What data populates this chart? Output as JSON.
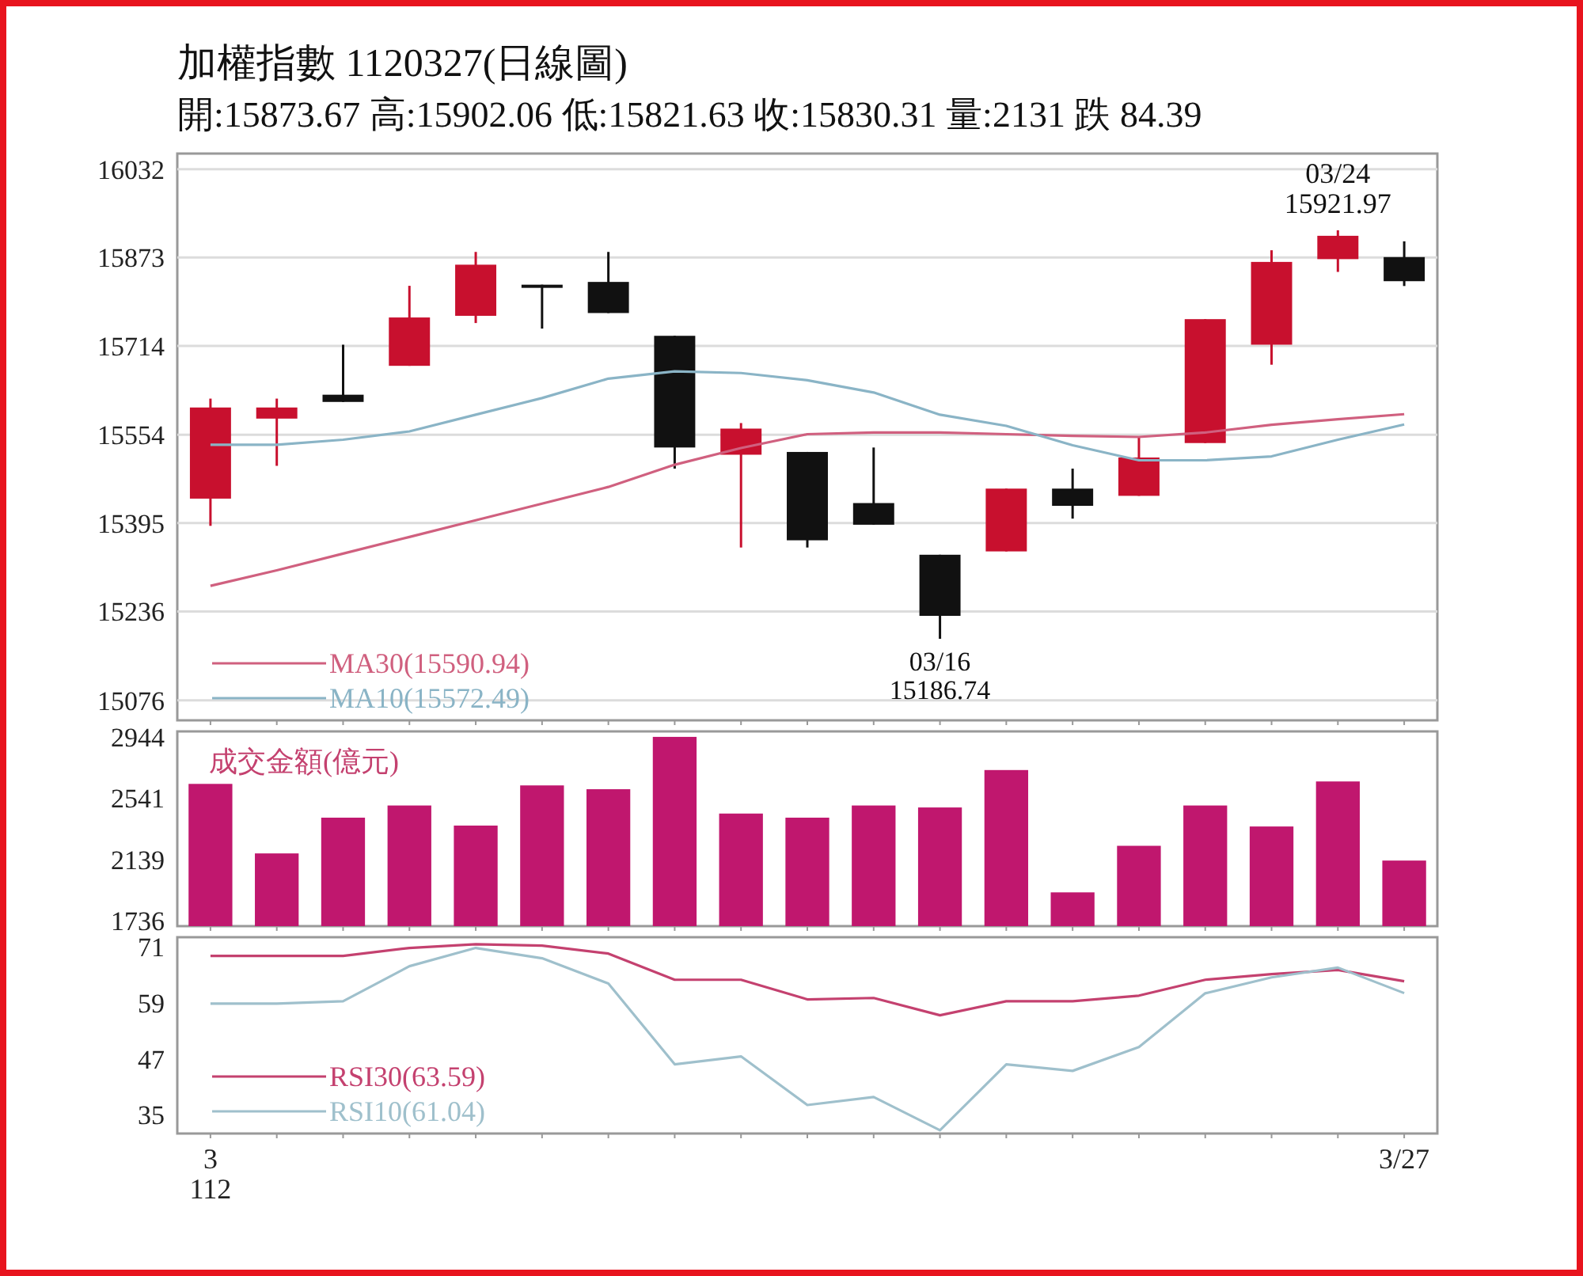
{
  "chart_data": [
    {
      "type": "candlestick",
      "title": "加權指數 1120327(日線圖)",
      "subtitle": "開:15873.67 高:15902.06 低:15821.63 收:15830.31 量:2131 跌 84.39",
      "categories": [
        null,
        null,
        null,
        null,
        null,
        null,
        null,
        null,
        null,
        null,
        null,
        null,
        null,
        null,
        null,
        null,
        null,
        null,
        null
      ],
      "ohlc": [
        [
          15439,
          15619,
          15390,
          15603
        ],
        [
          15583,
          15619,
          15498,
          15603
        ],
        [
          15626,
          15716,
          15613,
          15613
        ],
        [
          15678,
          15822,
          15678,
          15765
        ],
        [
          15768,
          15883,
          15755,
          15860
        ],
        [
          15824,
          15824,
          15745,
          15819
        ],
        [
          15829,
          15883,
          15773,
          15773
        ],
        [
          15732,
          15732,
          15493,
          15531
        ],
        [
          15518,
          15575,
          15351,
          15565
        ],
        [
          15523,
          15523,
          15351,
          15364
        ],
        [
          15431,
          15531,
          15392,
          15392
        ],
        [
          15338,
          15338,
          15186.74,
          15228
        ],
        [
          15344,
          15457,
          15344,
          15457
        ],
        [
          15457,
          15493,
          15403,
          15426
        ],
        [
          15444,
          15549,
          15444,
          15513
        ],
        [
          15539,
          15762,
          15539,
          15762
        ],
        [
          15716,
          15886,
          15680,
          15865
        ],
        [
          15870,
          15921.97,
          15847,
          15912
        ],
        [
          15873.67,
          15902.06,
          15821.63,
          15830.31
        ]
      ],
      "colors": [
        "#c8102e",
        "#c8102e",
        "#111111",
        "#c8102e",
        "#c8102e",
        "#111111",
        "#111111",
        "#111111",
        "#c8102e",
        "#111111",
        "#111111",
        "#111111",
        "#c8102e",
        "#111111",
        "#c8102e",
        "#c8102e",
        "#c8102e",
        "#c8102e",
        "#111111"
      ],
      "series": [
        {
          "type": "line",
          "name": "MA30(15590.94)",
          "color": "#d0607f",
          "values": [
            15282,
            15310,
            15340,
            15370,
            15400,
            15430,
            15460,
            15500,
            15530,
            15555,
            15558,
            15558,
            15555,
            15552,
            15550,
            15558,
            15572,
            15582,
            15590.94
          ]
        },
        {
          "type": "line",
          "name": "MA10(15572.49)",
          "color": "#8ab4c6",
          "values": [
            15536,
            15536,
            15545,
            15560,
            15590,
            15620,
            15655,
            15668,
            15665,
            15652,
            15630,
            15590,
            15570,
            15535,
            15508,
            15508,
            15515,
            15545,
            15572.49
          ]
        }
      ],
      "ylim": [
        15040,
        16060
      ],
      "yticks": [
        15076,
        15236,
        15395,
        15554,
        15714,
        15873,
        16032
      ],
      "grid": "y",
      "legend": "bottom left",
      "tick_labels": "y",
      "annotations": [
        {
          "text": "03/16\n15186.74",
          "y": 15186.74
        },
        {
          "text": "03/24\n15921.97",
          "y": 15921.97
        }
      ]
    },
    {
      "type": "bar",
      "title": "成交金額(億元)",
      "categories": [
        null,
        null,
        null,
        null,
        null,
        null,
        null,
        null,
        null,
        null,
        null,
        null,
        null,
        null,
        null,
        null,
        null,
        null,
        null
      ],
      "color": "#c0176e",
      "values": [
        2635,
        2178,
        2413,
        2493,
        2361,
        2625,
        2600,
        2944,
        2440,
        2413,
        2493,
        2480,
        2726,
        1922,
        2228,
        2493,
        2355,
        2651,
        2131
      ],
      "ylim": [
        1700,
        2980
      ],
      "yticks": [
        1736,
        2139,
        2541,
        2944
      ],
      "tick_labels": "y"
    },
    {
      "type": "line",
      "categories": [
        "3\n112",
        null,
        null,
        null,
        null,
        null,
        null,
        null,
        null,
        null,
        null,
        null,
        null,
        null,
        null,
        null,
        null,
        null,
        "3/27"
      ],
      "series": [
        {
          "name": "RSI30(63.59)",
          "color": "#c4416f",
          "values": [
            69.0,
            69.0,
            69.0,
            70.7,
            71.5,
            71.2,
            69.5,
            63.9,
            63.9,
            59.7,
            60.0,
            56.3,
            59.3,
            59.3,
            60.5,
            63.9,
            65.1,
            66.0,
            63.59
          ]
        },
        {
          "name": "RSI10(61.04)",
          "color": "#9fc0cc",
          "values": [
            58.8,
            58.8,
            59.3,
            66.8,
            70.7,
            68.5,
            63.1,
            45.8,
            47.5,
            37.1,
            38.8,
            31.7,
            45.8,
            44.4,
            49.5,
            61.0,
            64.4,
            66.5,
            61.04
          ]
        }
      ],
      "ylim": [
        31,
        73
      ],
      "yticks": [
        35,
        47,
        59,
        71
      ],
      "legend": "bottom left"
    }
  ]
}
